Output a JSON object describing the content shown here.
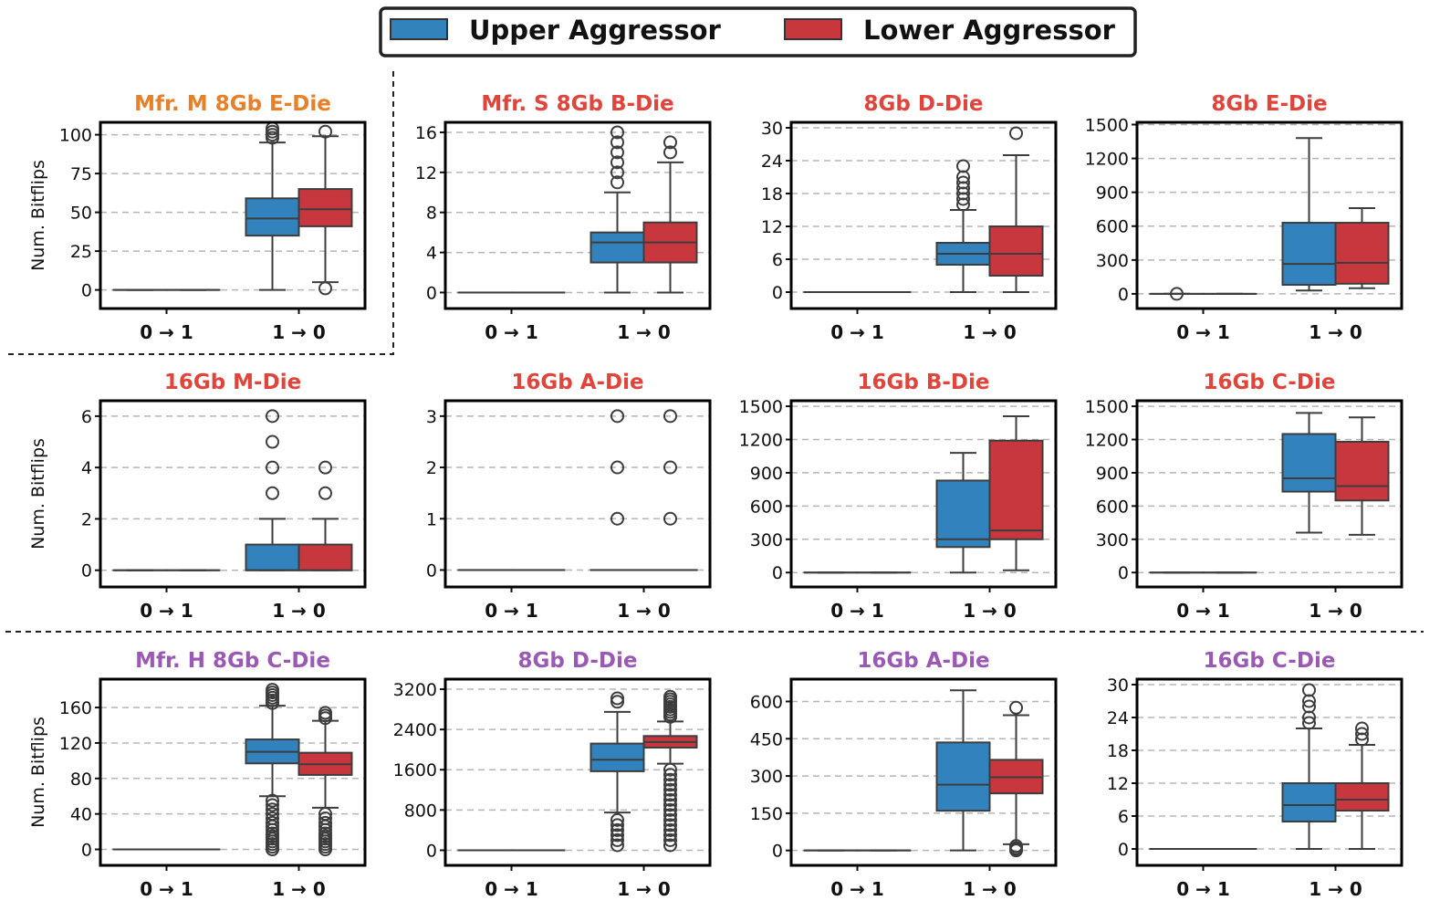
{
  "colors": {
    "upper": "#3182bd",
    "lower": "#c9373e",
    "median": "#3d3d3d",
    "whisker": "#3d3d3d",
    "grid": "#b5b5b5",
    "title_M": "#e8802a",
    "title_S": "#e0443b",
    "title_H": "#9b59b6"
  },
  "legend": {
    "items": [
      {
        "label": "Upper Aggressor",
        "color": "#3182bd"
      },
      {
        "label": "Lower Aggressor",
        "color": "#c9373e"
      }
    ],
    "placement": "top-center"
  },
  "chart_data": [
    {
      "type": "box",
      "title": "Mfr. M 8Gb E-Die",
      "title_color": "#e8802a",
      "ylabel": "Num. Bitflips",
      "categories": [
        "0 → 1",
        "1 → 0"
      ],
      "ylim": [
        -12,
        108
      ],
      "yticks": [
        0,
        25,
        50,
        75,
        100
      ],
      "grid": true,
      "series": [
        {
          "name": "Upper Aggressor",
          "values": [
            {
              "q1": 0,
              "median": 0,
              "q3": 0,
              "lo": 0,
              "hi": 0,
              "outliers": []
            },
            {
              "q1": 35,
              "median": 46,
              "q3": 59,
              "lo": 0,
              "hi": 95,
              "outliers": [
                98,
                100,
                102,
                104
              ]
            }
          ]
        },
        {
          "name": "Lower Aggressor",
          "values": [
            {
              "q1": 0,
              "median": 0,
              "q3": 0,
              "lo": 0,
              "hi": 0,
              "outliers": []
            },
            {
              "q1": 41,
              "median": 52,
              "q3": 65,
              "lo": 5,
              "hi": 99,
              "outliers": [
                1,
                102
              ]
            }
          ]
        }
      ]
    },
    {
      "type": "box",
      "title": "Mfr. S 8Gb B-Die",
      "title_color": "#e0443b",
      "ylabel": "",
      "categories": [
        "0 → 1",
        "1 → 0"
      ],
      "ylim": [
        -1.6,
        17
      ],
      "yticks": [
        0,
        4,
        8,
        12,
        16
      ],
      "grid": true,
      "series": [
        {
          "name": "Upper Aggressor",
          "values": [
            {
              "q1": 0,
              "median": 0,
              "q3": 0,
              "lo": 0,
              "hi": 0,
              "outliers": []
            },
            {
              "q1": 3,
              "median": 5,
              "q3": 6,
              "lo": 0,
              "hi": 10,
              "outliers": [
                11,
                12,
                13,
                14,
                15,
                16
              ]
            }
          ]
        },
        {
          "name": "Lower Aggressor",
          "values": [
            {
              "q1": 0,
              "median": 0,
              "q3": 0,
              "lo": 0,
              "hi": 0,
              "outliers": []
            },
            {
              "q1": 3,
              "median": 5,
              "q3": 7,
              "lo": 0,
              "hi": 13,
              "outliers": [
                14,
                15
              ]
            }
          ]
        }
      ]
    },
    {
      "type": "box",
      "title": "8Gb D-Die",
      "title_color": "#e0443b",
      "ylabel": "",
      "categories": [
        "0 → 1",
        "1 → 0"
      ],
      "ylim": [
        -3,
        31
      ],
      "yticks": [
        0,
        6,
        12,
        18,
        24,
        30
      ],
      "grid": true,
      "series": [
        {
          "name": "Upper Aggressor",
          "values": [
            {
              "q1": 0,
              "median": 0,
              "q3": 0,
              "lo": 0,
              "hi": 0,
              "outliers": []
            },
            {
              "q1": 5,
              "median": 7,
              "q3": 9,
              "lo": 0,
              "hi": 15,
              "outliers": [
                16,
                17,
                18,
                19,
                20,
                21,
                23
              ]
            }
          ]
        },
        {
          "name": "Lower Aggressor",
          "values": [
            {
              "q1": 0,
              "median": 0,
              "q3": 0,
              "lo": 0,
              "hi": 0,
              "outliers": []
            },
            {
              "q1": 3,
              "median": 7,
              "q3": 12,
              "lo": 0,
              "hi": 25,
              "outliers": [
                29
              ]
            }
          ]
        }
      ]
    },
    {
      "type": "box",
      "title": "8Gb E-Die",
      "title_color": "#e0443b",
      "ylabel": "",
      "categories": [
        "0 → 1",
        "1 → 0"
      ],
      "ylim": [
        -130,
        1520
      ],
      "yticks": [
        0,
        300,
        600,
        900,
        1200,
        1500
      ],
      "grid": true,
      "series": [
        {
          "name": "Upper Aggressor",
          "values": [
            {
              "q1": 0,
              "median": 0,
              "q3": 0,
              "lo": 0,
              "hi": 0,
              "outliers": [
                0
              ]
            },
            {
              "q1": 80,
              "median": 265,
              "q3": 630,
              "lo": 30,
              "hi": 1380,
              "outliers": []
            }
          ]
        },
        {
          "name": "Lower Aggressor",
          "values": [
            {
              "q1": 0,
              "median": 0,
              "q3": 0,
              "lo": 0,
              "hi": 0,
              "outliers": []
            },
            {
              "q1": 90,
              "median": 275,
              "q3": 630,
              "lo": 50,
              "hi": 760,
              "outliers": []
            }
          ]
        }
      ]
    },
    {
      "type": "box",
      "title": "16Gb M-Die",
      "title_color": "#e0443b",
      "ylabel": "Num. Bitflips",
      "categories": [
        "0 → 1",
        "1 → 0"
      ],
      "ylim": [
        -0.65,
        6.6
      ],
      "yticks": [
        0,
        2,
        4,
        6
      ],
      "grid": true,
      "series": [
        {
          "name": "Upper Aggressor",
          "values": [
            {
              "q1": 0,
              "median": 0,
              "q3": 0,
              "lo": 0,
              "hi": 0,
              "outliers": []
            },
            {
              "q1": 0,
              "median": 0,
              "q3": 1,
              "lo": 0,
              "hi": 2,
              "outliers": [
                3,
                4,
                5,
                6
              ]
            }
          ]
        },
        {
          "name": "Lower Aggressor",
          "values": [
            {
              "q1": 0,
              "median": 0,
              "q3": 0,
              "lo": 0,
              "hi": 0,
              "outliers": []
            },
            {
              "q1": 0,
              "median": 0,
              "q3": 1,
              "lo": 0,
              "hi": 2,
              "outliers": [
                3,
                4
              ]
            }
          ]
        }
      ]
    },
    {
      "type": "box",
      "title": "16Gb A-Die",
      "title_color": "#e0443b",
      "ylabel": "",
      "categories": [
        "0 → 1",
        "1 → 0"
      ],
      "ylim": [
        -0.33,
        3.3
      ],
      "yticks": [
        0,
        1,
        2,
        3
      ],
      "grid": true,
      "series": [
        {
          "name": "Upper Aggressor",
          "values": [
            {
              "q1": 0,
              "median": 0,
              "q3": 0,
              "lo": 0,
              "hi": 0,
              "outliers": []
            },
            {
              "q1": 0,
              "median": 0,
              "q3": 0,
              "lo": 0,
              "hi": 0,
              "outliers": [
                1,
                2,
                3
              ]
            }
          ]
        },
        {
          "name": "Lower Aggressor",
          "values": [
            {
              "q1": 0,
              "median": 0,
              "q3": 0,
              "lo": 0,
              "hi": 0,
              "outliers": []
            },
            {
              "q1": 0,
              "median": 0,
              "q3": 0,
              "lo": 0,
              "hi": 0,
              "outliers": [
                1,
                2,
                3
              ]
            }
          ]
        }
      ]
    },
    {
      "type": "box",
      "title": "16Gb B-Die",
      "title_color": "#e0443b",
      "ylabel": "",
      "categories": [
        "0 → 1",
        "1 → 0"
      ],
      "ylim": [
        -130,
        1550
      ],
      "yticks": [
        0,
        300,
        600,
        900,
        1200,
        1500
      ],
      "grid": true,
      "series": [
        {
          "name": "Upper Aggressor",
          "values": [
            {
              "q1": 0,
              "median": 0,
              "q3": 0,
              "lo": 0,
              "hi": 0,
              "outliers": []
            },
            {
              "q1": 230,
              "median": 300,
              "q3": 830,
              "lo": 0,
              "hi": 1080,
              "outliers": []
            }
          ]
        },
        {
          "name": "Lower Aggressor",
          "values": [
            {
              "q1": 0,
              "median": 0,
              "q3": 0,
              "lo": 0,
              "hi": 0,
              "outliers": []
            },
            {
              "q1": 300,
              "median": 380,
              "q3": 1190,
              "lo": 20,
              "hi": 1410,
              "outliers": []
            }
          ]
        }
      ]
    },
    {
      "type": "box",
      "title": "16Gb C-Die",
      "title_color": "#e0443b",
      "ylabel": "",
      "categories": [
        "0 → 1",
        "1 → 0"
      ],
      "ylim": [
        -130,
        1550
      ],
      "yticks": [
        0,
        300,
        600,
        900,
        1200,
        1500
      ],
      "grid": true,
      "series": [
        {
          "name": "Upper Aggressor",
          "values": [
            {
              "q1": 0,
              "median": 0,
              "q3": 0,
              "lo": 0,
              "hi": 0,
              "outliers": []
            },
            {
              "q1": 730,
              "median": 850,
              "q3": 1250,
              "lo": 360,
              "hi": 1440,
              "outliers": []
            }
          ]
        },
        {
          "name": "Lower Aggressor",
          "values": [
            {
              "q1": 0,
              "median": 0,
              "q3": 0,
              "lo": 0,
              "hi": 0,
              "outliers": []
            },
            {
              "q1": 650,
              "median": 780,
              "q3": 1180,
              "lo": 340,
              "hi": 1400,
              "outliers": []
            }
          ]
        }
      ]
    },
    {
      "type": "box",
      "title": "Mfr. H 8Gb C-Die",
      "title_color": "#9b59b6",
      "ylabel": "Num. Bitflips",
      "categories": [
        "0 → 1",
        "1 → 0"
      ],
      "ylim": [
        -18,
        192
      ],
      "yticks": [
        0,
        40,
        80,
        120,
        160
      ],
      "grid": true,
      "series": [
        {
          "name": "Upper Aggressor",
          "values": [
            {
              "q1": 0,
              "median": 0,
              "q3": 0,
              "lo": 0,
              "hi": 0,
              "outliers": []
            },
            {
              "q1": 97,
              "median": 110,
              "q3": 124,
              "lo": 60,
              "hi": 162,
              "outliers": [
                0,
                3,
                6,
                9,
                12,
                15,
                18,
                22,
                26,
                30,
                35,
                40,
                45,
                50,
                55,
                165,
                168,
                171,
                174,
                177,
                180
              ]
            }
          ]
        },
        {
          "name": "Lower Aggressor",
          "values": [
            {
              "q1": 0,
              "median": 0,
              "q3": 0,
              "lo": 0,
              "hi": 0,
              "outliers": []
            },
            {
              "q1": 84,
              "median": 96,
              "q3": 109,
              "lo": 47,
              "hi": 145,
              "outliers": [
                0,
                3,
                6,
                9,
                12,
                15,
                18,
                22,
                26,
                30,
                35,
                40,
                148,
                151,
                154
              ]
            }
          ]
        }
      ]
    },
    {
      "type": "box",
      "title": "8Gb D-Die",
      "title_color": "#9b59b6",
      "ylabel": "",
      "categories": [
        "0 → 1",
        "1 → 0"
      ],
      "ylim": [
        -300,
        3400
      ],
      "yticks": [
        0,
        800,
        1600,
        2400,
        3200
      ],
      "grid": true,
      "series": [
        {
          "name": "Upper Aggressor",
          "values": [
            {
              "q1": 0,
              "median": 0,
              "q3": 0,
              "lo": 0,
              "hi": 0,
              "outliers": []
            },
            {
              "q1": 1570,
              "median": 1800,
              "q3": 2120,
              "lo": 750,
              "hi": 2750,
              "outliers": [
                100,
                200,
                300,
                400,
                500,
                600,
                2950,
                3020
              ]
            }
          ]
        },
        {
          "name": "Lower Aggressor",
          "values": [
            {
              "q1": 0,
              "median": 0,
              "q3": 0,
              "lo": 0,
              "hi": 0,
              "outliers": []
            },
            {
              "q1": 2040,
              "median": 2150,
              "q3": 2270,
              "lo": 1720,
              "hi": 2560,
              "outliers": [
                100,
                200,
                300,
                400,
                500,
                600,
                700,
                800,
                900,
                1000,
                1100,
                1200,
                1300,
                1400,
                1500,
                1600,
                2650,
                2700,
                2750,
                2800,
                2850,
                2900,
                2950,
                3000,
                3050
              ]
            }
          ]
        }
      ]
    },
    {
      "type": "box",
      "title": "16Gb A-Die",
      "title_color": "#9b59b6",
      "ylabel": "",
      "categories": [
        "0 → 1",
        "1 → 0"
      ],
      "ylim": [
        -60,
        690
      ],
      "yticks": [
        0,
        150,
        300,
        450,
        600
      ],
      "grid": true,
      "series": [
        {
          "name": "Upper Aggressor",
          "values": [
            {
              "q1": 0,
              "median": 0,
              "q3": 0,
              "lo": 0,
              "hi": 0,
              "outliers": []
            },
            {
              "q1": 160,
              "median": 265,
              "q3": 435,
              "lo": 0,
              "hi": 645,
              "outliers": []
            }
          ]
        },
        {
          "name": "Lower Aggressor",
          "values": [
            {
              "q1": 0,
              "median": 0,
              "q3": 0,
              "lo": 0,
              "hi": 0,
              "outliers": []
            },
            {
              "q1": 230,
              "median": 295,
              "q3": 365,
              "lo": 25,
              "hi": 545,
              "outliers": [
                0,
                5,
                10,
                18,
                575
              ]
            }
          ]
        }
      ]
    },
    {
      "type": "box",
      "title": "16Gb C-Die",
      "title_color": "#9b59b6",
      "ylabel": "",
      "categories": [
        "0 → 1",
        "1 → 0"
      ],
      "ylim": [
        -3,
        31
      ],
      "yticks": [
        0,
        6,
        12,
        18,
        24,
        30
      ],
      "grid": true,
      "series": [
        {
          "name": "Upper Aggressor",
          "values": [
            {
              "q1": 0,
              "median": 0,
              "q3": 0,
              "lo": 0,
              "hi": 0,
              "outliers": []
            },
            {
              "q1": 5,
              "median": 8,
              "q3": 12,
              "lo": 0,
              "hi": 22,
              "outliers": [
                23,
                24,
                26,
                27,
                29
              ]
            }
          ]
        },
        {
          "name": "Lower Aggressor",
          "values": [
            {
              "q1": 0,
              "median": 0,
              "q3": 0,
              "lo": 0,
              "hi": 0,
              "outliers": []
            },
            {
              "q1": 7,
              "median": 9,
              "q3": 12,
              "lo": 0,
              "hi": 19,
              "outliers": [
                20,
                21,
                22
              ]
            }
          ]
        }
      ]
    }
  ]
}
